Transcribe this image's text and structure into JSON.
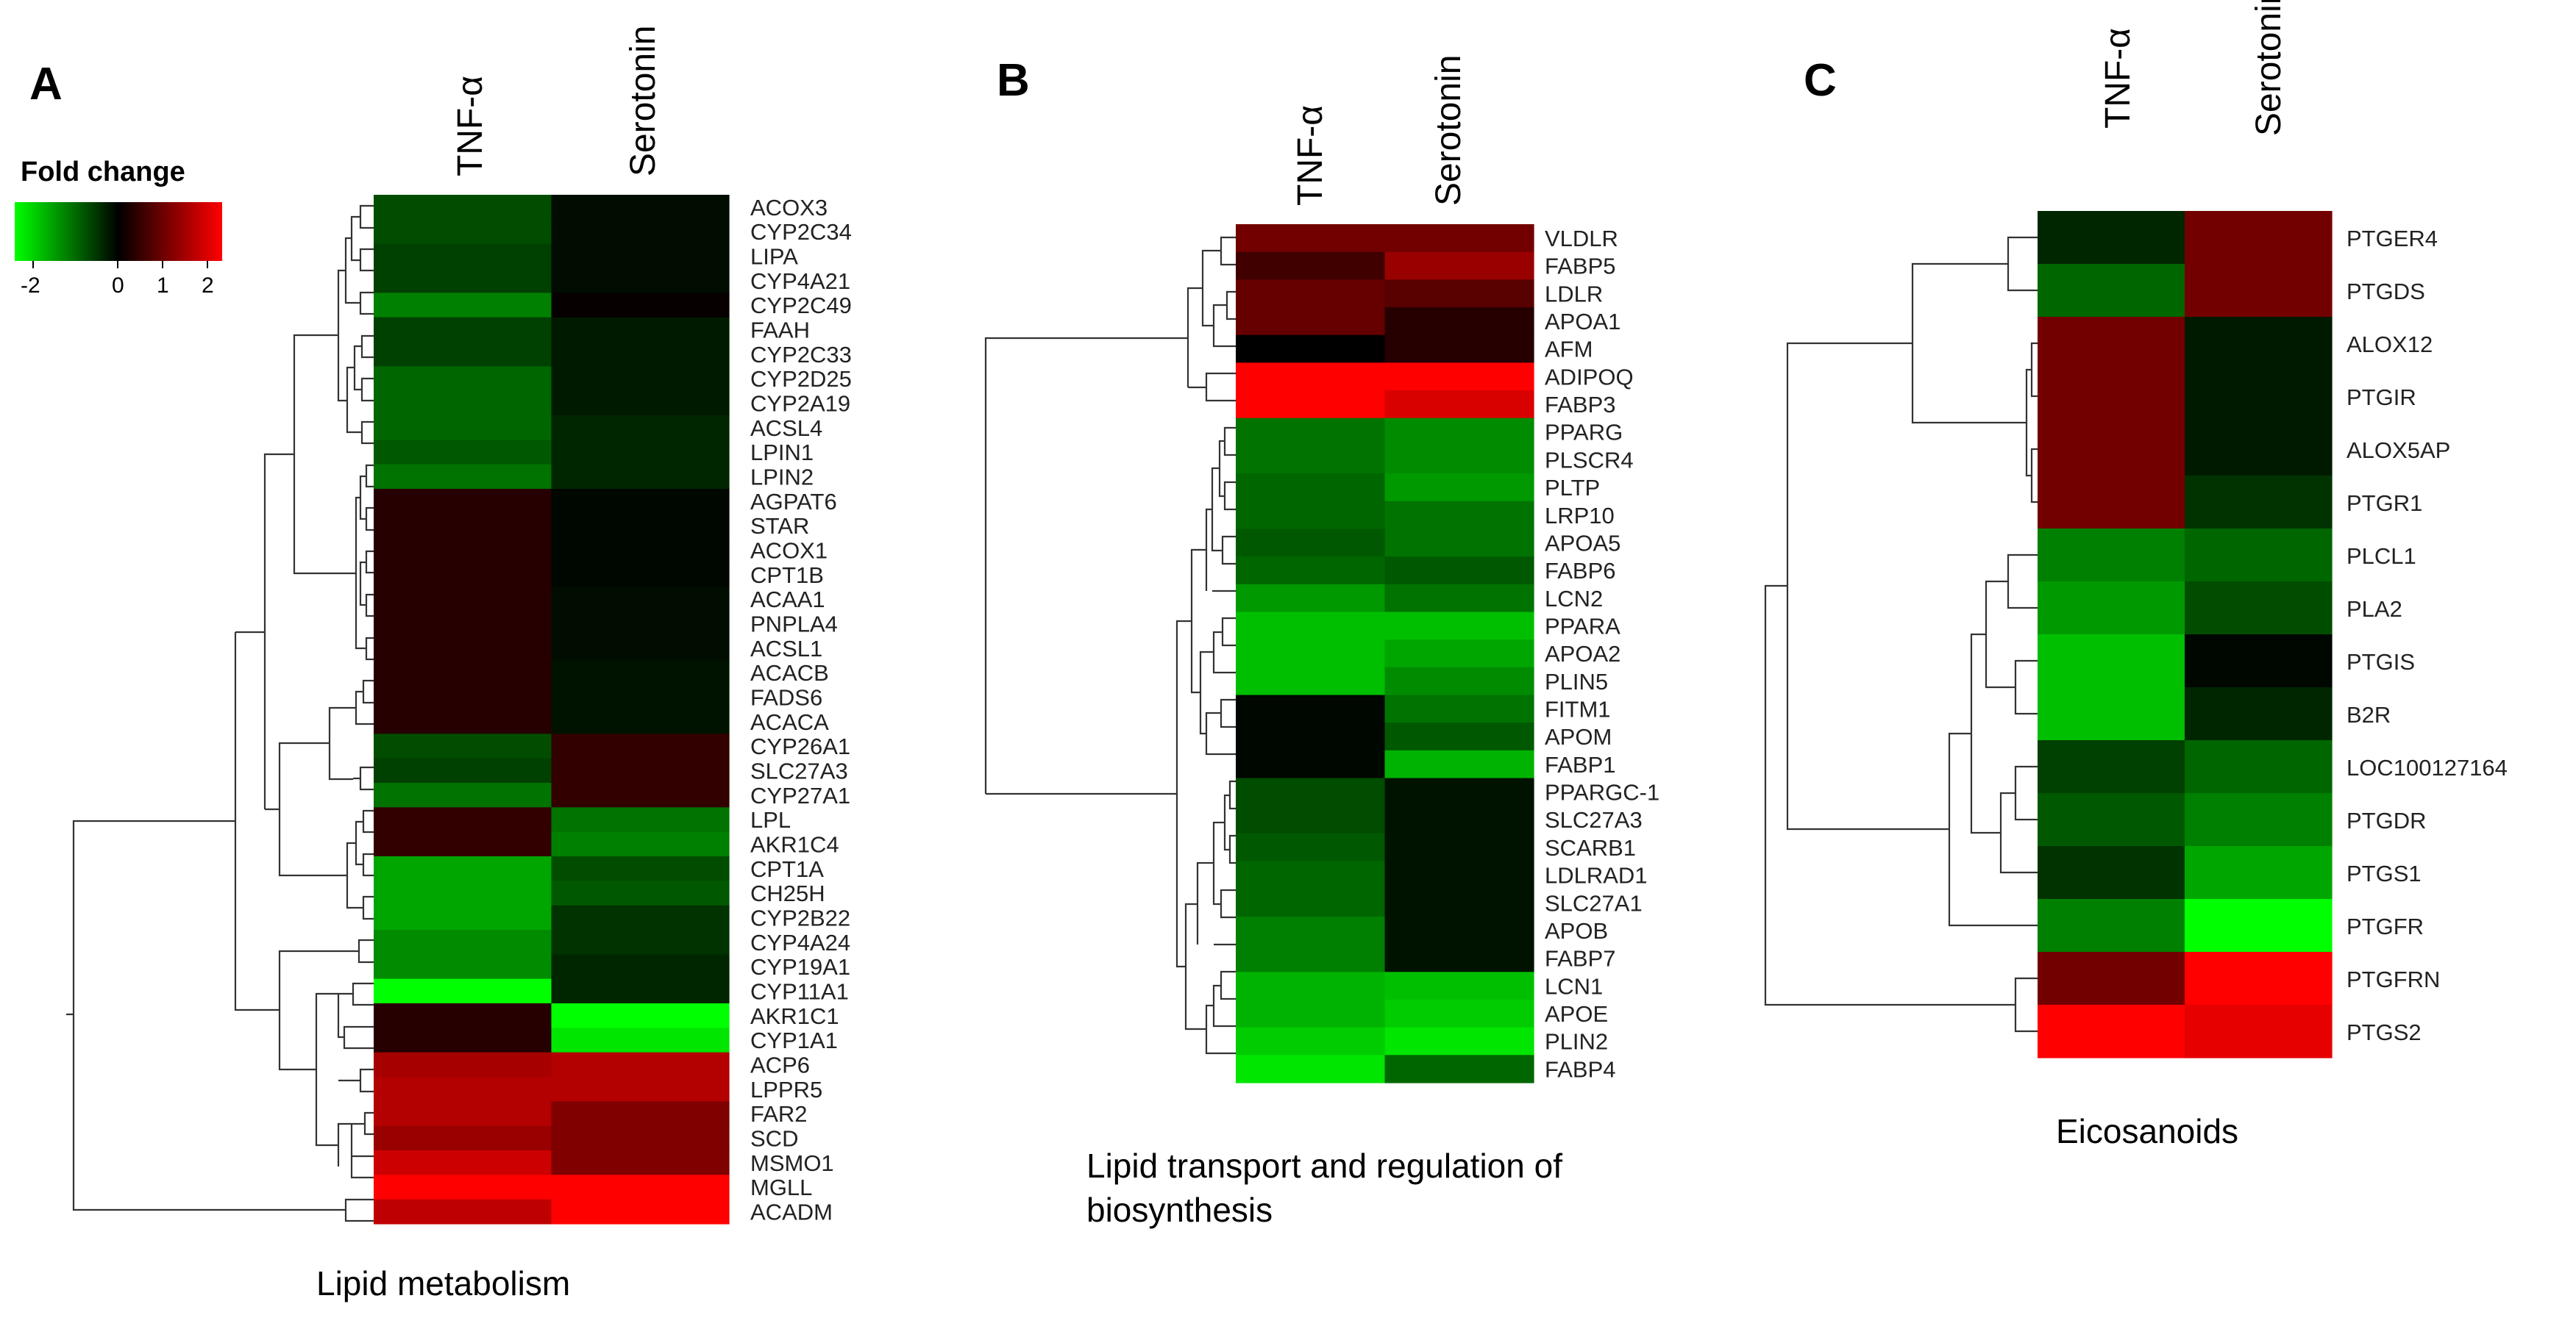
{
  "chart_data": [
    {
      "type": "heatmap",
      "panel": "A",
      "title": "Lipid metabolism",
      "columns": [
        "TNF-α",
        "Serotonin"
      ],
      "legend": {
        "title": "Fold change",
        "ticks": [
          "-2",
          "0",
          "1",
          "2"
        ],
        "range": [
          -2,
          2
        ],
        "colors": {
          "low": "#00ff00",
          "mid": "#000000",
          "high": "#ff0000"
        }
      },
      "rows": [
        {
          "gene": "ACOX3",
          "values": [
            -0.6,
            -0.1
          ]
        },
        {
          "gene": "CYP2C34",
          "values": [
            -0.6,
            -0.1
          ]
        },
        {
          "gene": "LIPA",
          "values": [
            -0.5,
            -0.1
          ]
        },
        {
          "gene": "CYP4A21",
          "values": [
            -0.5,
            -0.1
          ]
        },
        {
          "gene": "CYP2C49",
          "values": [
            -1.0,
            0.05
          ]
        },
        {
          "gene": "FAAH",
          "values": [
            -0.5,
            -0.2
          ]
        },
        {
          "gene": "CYP2C33",
          "values": [
            -0.5,
            -0.2
          ]
        },
        {
          "gene": "CYP2D25",
          "values": [
            -0.8,
            -0.2
          ]
        },
        {
          "gene": "CYP2A19",
          "values": [
            -0.8,
            -0.2
          ]
        },
        {
          "gene": "ACSL4",
          "values": [
            -0.8,
            -0.3
          ]
        },
        {
          "gene": "LPIN1",
          "values": [
            -0.7,
            -0.3
          ]
        },
        {
          "gene": "LPIN2",
          "values": [
            -0.9,
            -0.3
          ]
        },
        {
          "gene": "AGPAT6",
          "values": [
            0.3,
            -0.05
          ]
        },
        {
          "gene": "STAR",
          "values": [
            0.3,
            -0.05
          ]
        },
        {
          "gene": "ACOX1",
          "values": [
            0.3,
            -0.05
          ]
        },
        {
          "gene": "CPT1B",
          "values": [
            0.3,
            -0.05
          ]
        },
        {
          "gene": "ACAA1",
          "values": [
            0.3,
            -0.1
          ]
        },
        {
          "gene": "PNPLA4",
          "values": [
            0.3,
            -0.1
          ]
        },
        {
          "gene": "ACSL1",
          "values": [
            0.3,
            -0.1
          ]
        },
        {
          "gene": "ACACB",
          "values": [
            0.3,
            -0.15
          ]
        },
        {
          "gene": "FADS6",
          "values": [
            0.3,
            -0.15
          ]
        },
        {
          "gene": "ACACA",
          "values": [
            0.3,
            -0.15
          ]
        },
        {
          "gene": "CYP26A1",
          "values": [
            -0.6,
            0.4
          ]
        },
        {
          "gene": "SLC27A3",
          "values": [
            -0.5,
            0.4
          ]
        },
        {
          "gene": "CYP27A1",
          "values": [
            -0.9,
            0.4
          ]
        },
        {
          "gene": "LPL",
          "values": [
            0.4,
            -0.9
          ]
        },
        {
          "gene": "AKR1C4",
          "values": [
            0.4,
            -1.0
          ]
        },
        {
          "gene": "CPT1A",
          "values": [
            -1.3,
            -0.6
          ]
        },
        {
          "gene": "CH25H",
          "values": [
            -1.3,
            -0.7
          ]
        },
        {
          "gene": "CYP2B22",
          "values": [
            -1.3,
            -0.4
          ]
        },
        {
          "gene": "CYP4A24",
          "values": [
            -1.1,
            -0.4
          ]
        },
        {
          "gene": "CYP19A1",
          "values": [
            -1.1,
            -0.3
          ]
        },
        {
          "gene": "CYP11A1",
          "values": [
            -2.0,
            -0.3
          ]
        },
        {
          "gene": "AKR1C1",
          "values": [
            0.3,
            -2.0
          ]
        },
        {
          "gene": "CYP1A1",
          "values": [
            0.3,
            -1.8
          ]
        },
        {
          "gene": "ACP6",
          "values": [
            1.3,
            1.4
          ]
        },
        {
          "gene": "LPPR5",
          "values": [
            1.4,
            1.4
          ]
        },
        {
          "gene": "FAR2",
          "values": [
            1.4,
            1.0
          ]
        },
        {
          "gene": "SCD",
          "values": [
            1.2,
            1.0
          ]
        },
        {
          "gene": "MSMO1",
          "values": [
            1.6,
            1.0
          ]
        },
        {
          "gene": "MGLL",
          "values": [
            2.0,
            2.0
          ]
        },
        {
          "gene": "ACADM",
          "values": [
            1.5,
            2.0
          ]
        }
      ]
    },
    {
      "type": "heatmap",
      "panel": "B",
      "title": "Lipid transport and regulation of biosynthesis",
      "title_lines": [
        "Lipid transport and regulation of",
        "biosynthesis"
      ],
      "columns": [
        "TNF-α",
        "Serotonin"
      ],
      "rows": [
        {
          "gene": "VLDLR",
          "values": [
            0.9,
            0.9
          ]
        },
        {
          "gene": "FABP5",
          "values": [
            0.5,
            1.2
          ]
        },
        {
          "gene": "LDLR",
          "values": [
            0.8,
            0.7
          ]
        },
        {
          "gene": "APOA1",
          "values": [
            0.8,
            0.3
          ]
        },
        {
          "gene": "AFM",
          "values": [
            0.0,
            0.3
          ]
        },
        {
          "gene": "ADIPOQ",
          "values": [
            2.0,
            2.0
          ]
        },
        {
          "gene": "FABP3",
          "values": [
            2.0,
            1.7
          ]
        },
        {
          "gene": "PPARG",
          "values": [
            -0.9,
            -1.1
          ]
        },
        {
          "gene": "PLSCR4",
          "values": [
            -0.9,
            -1.1
          ]
        },
        {
          "gene": "PLTP",
          "values": [
            -0.8,
            -1.2
          ]
        },
        {
          "gene": "LRP10",
          "values": [
            -0.8,
            -0.9
          ]
        },
        {
          "gene": "APOA5",
          "values": [
            -0.7,
            -0.9
          ]
        },
        {
          "gene": "FABP6",
          "values": [
            -0.8,
            -0.7
          ]
        },
        {
          "gene": "LCN2",
          "values": [
            -1.2,
            -0.9
          ]
        },
        {
          "gene": "PPARA",
          "values": [
            -1.5,
            -1.5
          ]
        },
        {
          "gene": "APOA2",
          "values": [
            -1.5,
            -1.3
          ]
        },
        {
          "gene": "PLIN5",
          "values": [
            -1.5,
            -1.1
          ]
        },
        {
          "gene": "FITM1",
          "values": [
            -0.05,
            -0.9
          ]
        },
        {
          "gene": "APOM",
          "values": [
            -0.05,
            -0.7
          ]
        },
        {
          "gene": "FABP1",
          "values": [
            -0.05,
            -1.4
          ]
        },
        {
          "gene": "PPARGC-1",
          "values": [
            -0.6,
            -0.15
          ]
        },
        {
          "gene": "SLC27A3",
          "values": [
            -0.6,
            -0.15
          ]
        },
        {
          "gene": "SCARB1",
          "values": [
            -0.7,
            -0.15
          ]
        },
        {
          "gene": "LDLRAD1",
          "values": [
            -0.8,
            -0.15
          ]
        },
        {
          "gene": "SLC27A1",
          "values": [
            -0.8,
            -0.15
          ]
        },
        {
          "gene": "APOB",
          "values": [
            -1.0,
            -0.15
          ]
        },
        {
          "gene": "FABP7",
          "values": [
            -1.0,
            -0.15
          ]
        },
        {
          "gene": "LCN1",
          "values": [
            -1.4,
            -1.5
          ]
        },
        {
          "gene": "APOE",
          "values": [
            -1.4,
            -1.6
          ]
        },
        {
          "gene": "PLIN2",
          "values": [
            -1.6,
            -1.8
          ]
        },
        {
          "gene": "FABP4",
          "values": [
            -1.8,
            -0.8
          ]
        }
      ]
    },
    {
      "type": "heatmap",
      "panel": "C",
      "title": "Eicosanoids",
      "columns": [
        "TNF-α",
        "Serotonin"
      ],
      "rows": [
        {
          "gene": "PTGER4",
          "values": [
            -0.3,
            0.9
          ]
        },
        {
          "gene": "PTGDS",
          "values": [
            -0.8,
            0.9
          ]
        },
        {
          "gene": "ALOX12",
          "values": [
            0.9,
            -0.2
          ]
        },
        {
          "gene": "PTGIR",
          "values": [
            0.9,
            -0.2
          ]
        },
        {
          "gene": "ALOX5AP",
          "values": [
            0.9,
            -0.2
          ]
        },
        {
          "gene": "PTGR1",
          "values": [
            0.9,
            -0.4
          ]
        },
        {
          "gene": "PLCL1",
          "values": [
            -1.0,
            -0.8
          ]
        },
        {
          "gene": "PLA2",
          "values": [
            -1.2,
            -0.6
          ]
        },
        {
          "gene": "PTGIS",
          "values": [
            -1.5,
            -0.05
          ]
        },
        {
          "gene": "B2R",
          "values": [
            -1.5,
            -0.3
          ]
        },
        {
          "gene": "LOC100127164",
          "values": [
            -0.5,
            -0.8
          ]
        },
        {
          "gene": "PTGDR",
          "values": [
            -0.7,
            -1.0
          ]
        },
        {
          "gene": "PTGS1",
          "values": [
            -0.4,
            -1.3
          ]
        },
        {
          "gene": "PTGFR",
          "values": [
            -1.0,
            -2.0
          ]
        },
        {
          "gene": "PTGFRN",
          "values": [
            0.9,
            2.0
          ]
        },
        {
          "gene": "PTGS2",
          "values": [
            2.0,
            1.8
          ]
        }
      ]
    }
  ]
}
